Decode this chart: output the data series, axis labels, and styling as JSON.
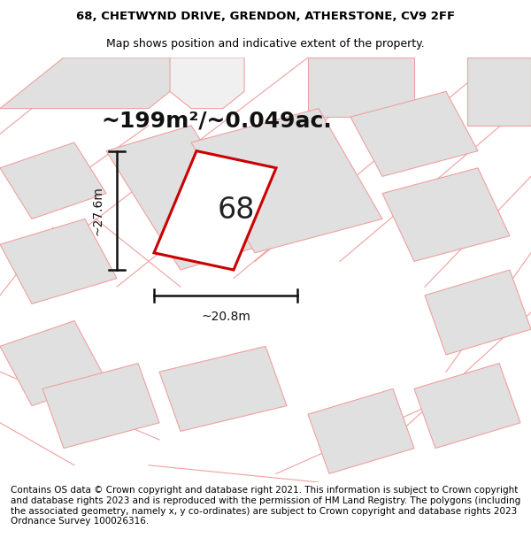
{
  "title_line1": "68, CHETWYND DRIVE, GRENDON, ATHERSTONE, CV9 2FF",
  "title_line2": "Map shows position and indicative extent of the property.",
  "area_text": "~199m²/~0.049ac.",
  "label_number": "68",
  "dim_width": "~20.8m",
  "dim_height": "~27.6m",
  "footer_text": "Contains OS data © Crown copyright and database right 2021. This information is subject to Crown copyright and database rights 2023 and is reproduced with the permission of HM Land Registry. The polygons (including the associated geometry, namely x, y co-ordinates) are subject to Crown copyright and database rights 2023 Ordnance Survey 100026316.",
  "bg_color": "#ffffff",
  "map_bg": "#ffffff",
  "plot_fill": "#ffffff",
  "plot_edge": "#cc0000",
  "block_fill": "#e0e0e0",
  "block_edge": "#f0a0a0",
  "road_color": "#f0a0a0",
  "title_fontsize": 9.5,
  "subtitle_fontsize": 9.0,
  "area_fontsize": 18,
  "label_fontsize": 24,
  "footer_fontsize": 7.5,
  "dim_fontsize": 10
}
